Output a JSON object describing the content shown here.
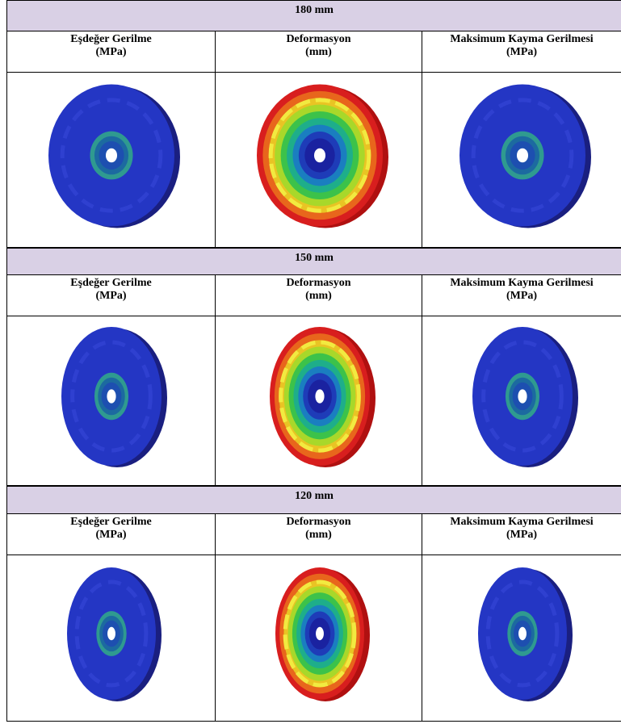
{
  "sections": [
    {
      "title": "180 mm",
      "columns": [
        {
          "name": "Eşdeğer Gerilme",
          "unit": "(MPa)"
        },
        {
          "name": "Deformasyon",
          "unit": "(mm)"
        },
        {
          "name": "Maksimum Kayma Gerilmesi",
          "unit": "(MPa)"
        }
      ]
    },
    {
      "title": "150 mm",
      "columns": [
        {
          "name": "Eşdeğer Gerilme",
          "unit": "(MPa)"
        },
        {
          "name": "Deformasyon",
          "unit": "(mm)"
        },
        {
          "name": "Maksimum Kayma Gerilmesi",
          "unit": "(MPa)"
        }
      ]
    },
    {
      "title": "120 mm",
      "columns": [
        {
          "name": "Eşdeğer Gerilme",
          "unit": "(MPa)"
        },
        {
          "name": "Deformasyon",
          "unit": "(mm)"
        },
        {
          "name": "Maksimum Kayma Gerilmesi",
          "unit": "(MPa)"
        }
      ]
    }
  ]
}
